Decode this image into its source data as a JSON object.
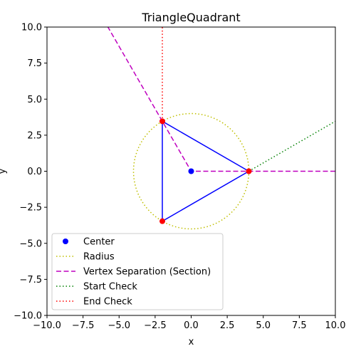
{
  "chart_data": {
    "type": "line",
    "title": "TriangleQuadrant",
    "xlabel": "x",
    "ylabel": "y",
    "xlim": [
      -10,
      10
    ],
    "ylim": [
      -10,
      10
    ],
    "xticks": [
      -10,
      -7.5,
      -5,
      -2.5,
      0,
      2.5,
      5,
      7.5,
      10
    ],
    "yticks": [
      -10,
      -7.5,
      -5,
      -2.5,
      0,
      2.5,
      5,
      7.5,
      10
    ],
    "xtick_labels": [
      "−10.0",
      "−7.5",
      "−5.0",
      "−2.5",
      "0.0",
      "2.5",
      "5.0",
      "7.5",
      "10.0"
    ],
    "ytick_labels": [
      "−10.0",
      "−7.5",
      "−5.0",
      "−2.5",
      "0.0",
      "2.5",
      "5.0",
      "7.5",
      "10.0"
    ],
    "grid": false,
    "legend_position": "lower-left",
    "center": {
      "x": 0,
      "y": 0,
      "color": "#0000ff",
      "label": "Center"
    },
    "radius": {
      "value": 4,
      "color": "#bfbf00",
      "style": "dotted",
      "label": "Radius"
    },
    "triangle": {
      "vertices": [
        [
          4,
          0
        ],
        [
          -2,
          3.464
        ],
        [
          -2,
          -3.464
        ]
      ],
      "color": "#0000ff",
      "vertex_color": "#ff0000"
    },
    "series": [
      {
        "name": "Vertex Separation (Section)",
        "color": "#bf00bf",
        "style": "dashed",
        "points": [
          [
            10,
            0
          ],
          [
            0,
            0
          ],
          [
            -5.774,
            10
          ]
        ]
      },
      {
        "name": "Start Check",
        "color": "#008000",
        "style": "dotted",
        "points": [
          [
            4,
            0
          ],
          [
            10,
            3.464
          ]
        ]
      },
      {
        "name": "End Check",
        "color": "#ff0000",
        "style": "dotted",
        "points": [
          [
            -2,
            3.464
          ],
          [
            -2,
            10
          ]
        ]
      }
    ]
  }
}
